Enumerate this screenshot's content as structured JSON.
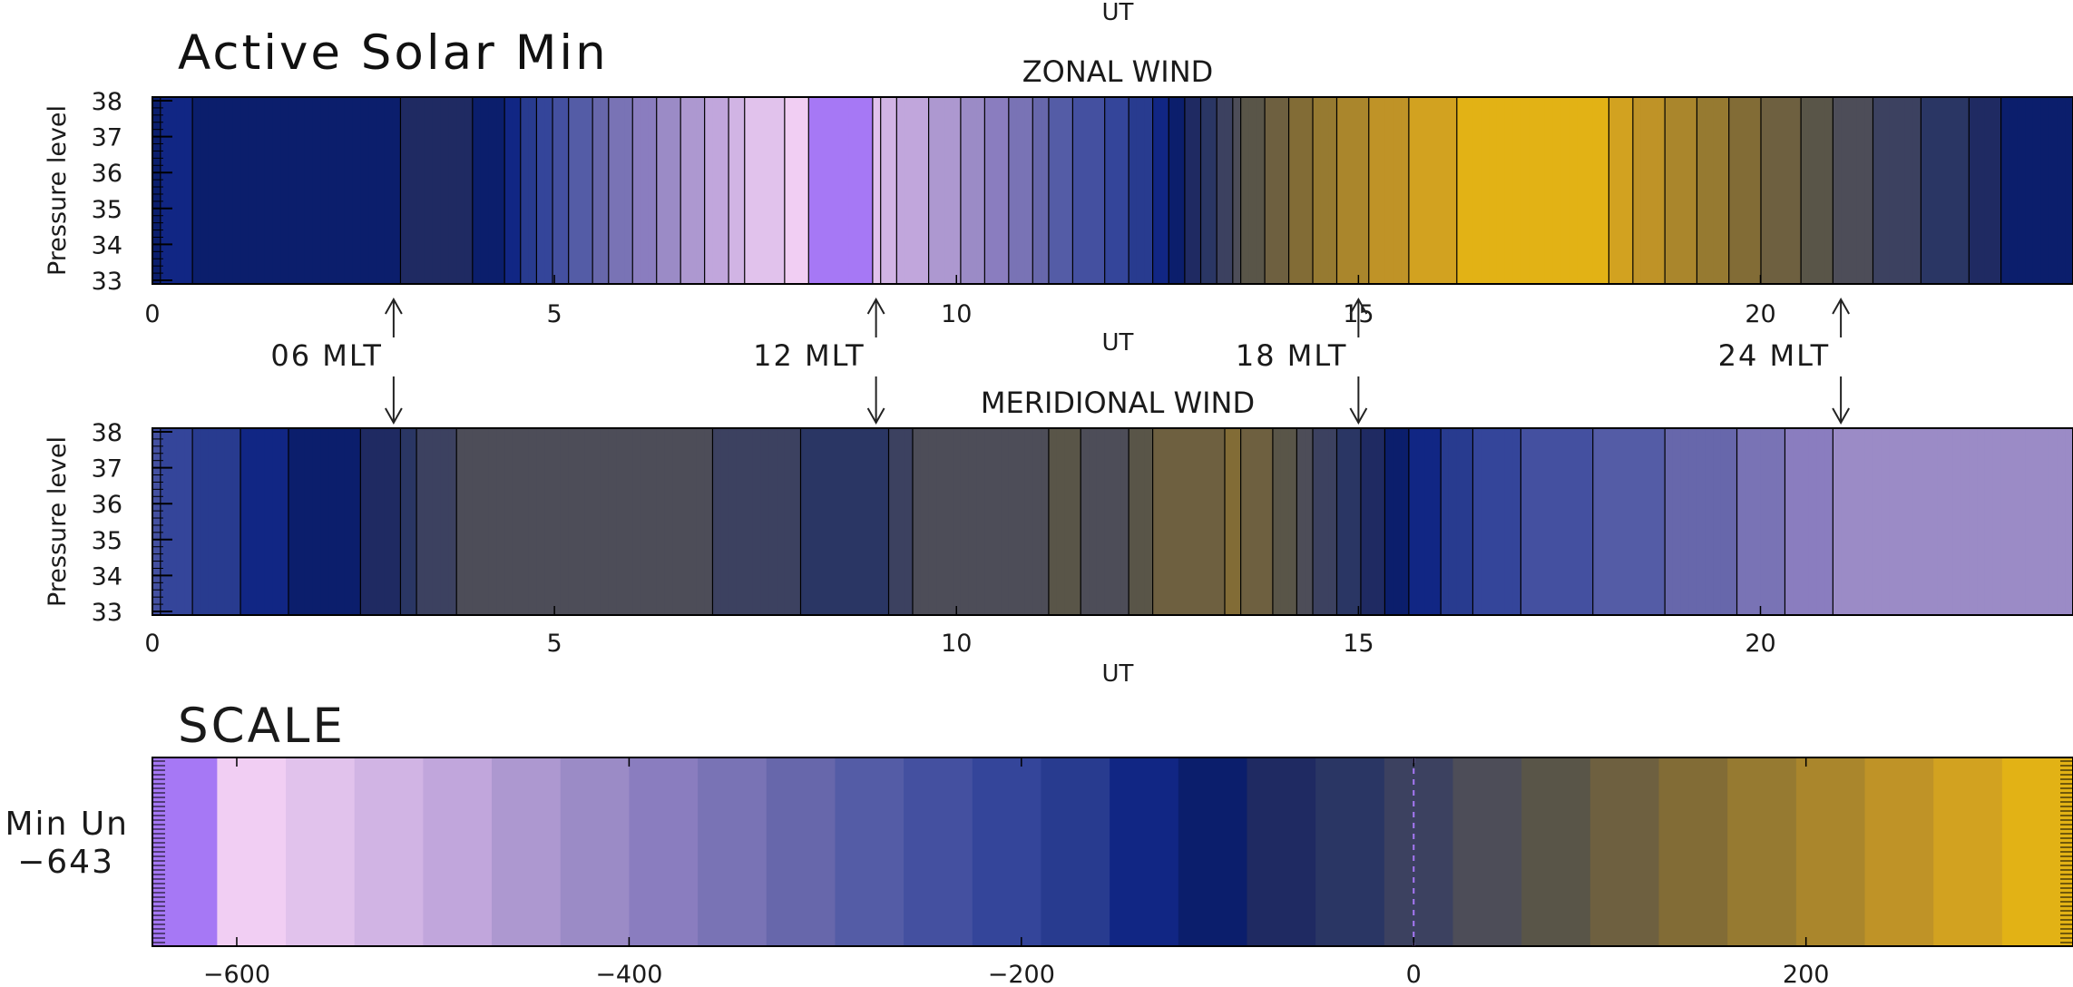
{
  "page_title": "Active Solar Min",
  "chart_data": [
    {
      "type": "heatmap",
      "title": "ZONAL WIND",
      "xlabel": "UT",
      "ylabel": "Pressure level",
      "x_ticks": [
        0,
        5,
        10,
        15,
        20
      ],
      "y_ticks": [
        33,
        34,
        35,
        36,
        37,
        38
      ],
      "xlim": [
        0,
        24
      ],
      "ylim": [
        33,
        38
      ],
      "ut_profile": [
        {
          "ut": 0.0,
          "value": -110
        },
        {
          "ut": 0.3,
          "value": -140
        },
        {
          "ut": 0.8,
          "value": -95
        },
        {
          "ut": 1.5,
          "value": -95
        },
        {
          "ut": 3.1,
          "value": -95
        },
        {
          "ut": 3.2,
          "value": -60
        },
        {
          "ut": 4.0,
          "value": -80
        },
        {
          "ut": 4.5,
          "value": -130
        },
        {
          "ut": 5.0,
          "value": -230
        },
        {
          "ut": 5.5,
          "value": -300
        },
        {
          "ut": 6.2,
          "value": -390
        },
        {
          "ut": 7.0,
          "value": -480
        },
        {
          "ut": 7.6,
          "value": -560
        },
        {
          "ut": 8.1,
          "value": -590
        },
        {
          "ut": 8.3,
          "value": -635
        },
        {
          "ut": 8.9,
          "value": -610
        },
        {
          "ut": 9.0,
          "value": -630
        },
        {
          "ut": 9.1,
          "value": -520
        },
        {
          "ut": 10.0,
          "value": -450
        },
        {
          "ut": 10.6,
          "value": -380
        },
        {
          "ut": 11.2,
          "value": -300
        },
        {
          "ut": 11.9,
          "value": -220
        },
        {
          "ut": 12.5,
          "value": -160
        },
        {
          "ut": 13.2,
          "value": -40
        },
        {
          "ut": 13.6,
          "value": 50
        },
        {
          "ut": 14.3,
          "value": 140
        },
        {
          "ut": 15.0,
          "value": 220
        },
        {
          "ut": 15.6,
          "value": 260
        },
        {
          "ut": 16.3,
          "value": 300
        },
        {
          "ut": 17.2,
          "value": 330
        },
        {
          "ut": 18.0,
          "value": 320
        },
        {
          "ut": 19.0,
          "value": 220
        },
        {
          "ut": 19.8,
          "value": 150
        },
        {
          "ut": 20.6,
          "value": 90
        },
        {
          "ut": 21.3,
          "value": 30
        },
        {
          "ut": 22.0,
          "value": -10
        },
        {
          "ut": 22.5,
          "value": -30
        },
        {
          "ut": 23.0,
          "value": -80
        },
        {
          "ut": 24.0,
          "value": -120
        }
      ]
    },
    {
      "type": "heatmap",
      "title": "MERIDIONAL WIND",
      "xlabel": "UT",
      "ylabel": "Pressure level",
      "x_ticks": [
        0,
        5,
        10,
        15,
        20
      ],
      "y_ticks": [
        33,
        34,
        35,
        36,
        37,
        38
      ],
      "xlim": [
        0,
        24
      ],
      "ylim": [
        33,
        38
      ],
      "ut_profile": [
        {
          "ut": 0.0,
          "value": -230
        },
        {
          "ut": 0.5,
          "value": -190
        },
        {
          "ut": 1.2,
          "value": -150
        },
        {
          "ut": 1.8,
          "value": -115
        },
        {
          "ut": 2.5,
          "value": -90
        },
        {
          "ut": 3.0,
          "value": -60
        },
        {
          "ut": 3.5,
          "value": 10
        },
        {
          "ut": 4.5,
          "value": 45
        },
        {
          "ut": 5.8,
          "value": 30
        },
        {
          "ut": 7.0,
          "value": 20
        },
        {
          "ut": 8.2,
          "value": -20
        },
        {
          "ut": 9.0,
          "value": -40
        },
        {
          "ut": 9.5,
          "value": 20
        },
        {
          "ut": 10.5,
          "value": 40
        },
        {
          "ut": 11.5,
          "value": 60
        },
        {
          "ut": 12.0,
          "value": 20
        },
        {
          "ut": 12.5,
          "value": 90
        },
        {
          "ut": 13.0,
          "value": 110
        },
        {
          "ut": 13.5,
          "value": 130
        },
        {
          "ut": 14.2,
          "value": 70
        },
        {
          "ut": 14.8,
          "value": -20
        },
        {
          "ut": 15.5,
          "value": -100
        },
        {
          "ut": 16.2,
          "value": -170
        },
        {
          "ut": 17.0,
          "value": -220
        },
        {
          "ut": 18.0,
          "value": -260
        },
        {
          "ut": 19.0,
          "value": -300
        },
        {
          "ut": 20.0,
          "value": -340
        },
        {
          "ut": 21.0,
          "value": -400
        },
        {
          "ut": 22.0,
          "value": -420
        },
        {
          "ut": 23.5,
          "value": -430
        },
        {
          "ut": 24.0,
          "value": -420
        }
      ]
    },
    {
      "type": "heatmap",
      "title": "SCALE",
      "x_ticks": [
        -600,
        -400,
        -200,
        0,
        200
      ],
      "xlim": [
        -643,
        350
      ],
      "y_label_lines": [
        "Min Un",
        "-643"
      ],
      "levels": [
        -643,
        -610,
        -575,
        -540,
        -505,
        -470,
        -435,
        -400,
        -365,
        -330,
        -295,
        -260,
        -225,
        -190,
        -155,
        -120,
        -85,
        -50,
        -15,
        20,
        55,
        90,
        125,
        160,
        195,
        230,
        265,
        300,
        335,
        350
      ],
      "colors": [
        "#a678f5",
        "#f1cef3",
        "#e1c2ec",
        "#d1b4e4",
        "#c1a6dc",
        "#ad98d0",
        "#9b8bc6",
        "#8a7dbf",
        "#7973b5",
        "#6767ab",
        "#545ca6",
        "#4450a0",
        "#34459a",
        "#283b8f",
        "#112684",
        "#0b1e6c",
        "#1f2a62",
        "#2a3664",
        "#3c4160",
        "#4d4d58",
        "#595548",
        "#6e6040",
        "#826c36",
        "#967a31",
        "#aa862c",
        "#bf9327",
        "#d2a220",
        "#e2b215",
        "#f0bc0a"
      ],
      "zero_marker": 0
    }
  ],
  "mlt_markers": [
    {
      "label": "06 MLT",
      "ut": 3
    },
    {
      "label": "12 MLT",
      "ut": 9
    },
    {
      "label": "18 MLT",
      "ut": 15
    },
    {
      "label": "24 MLT",
      "ut": 21
    }
  ],
  "top_ut_label": "UT"
}
